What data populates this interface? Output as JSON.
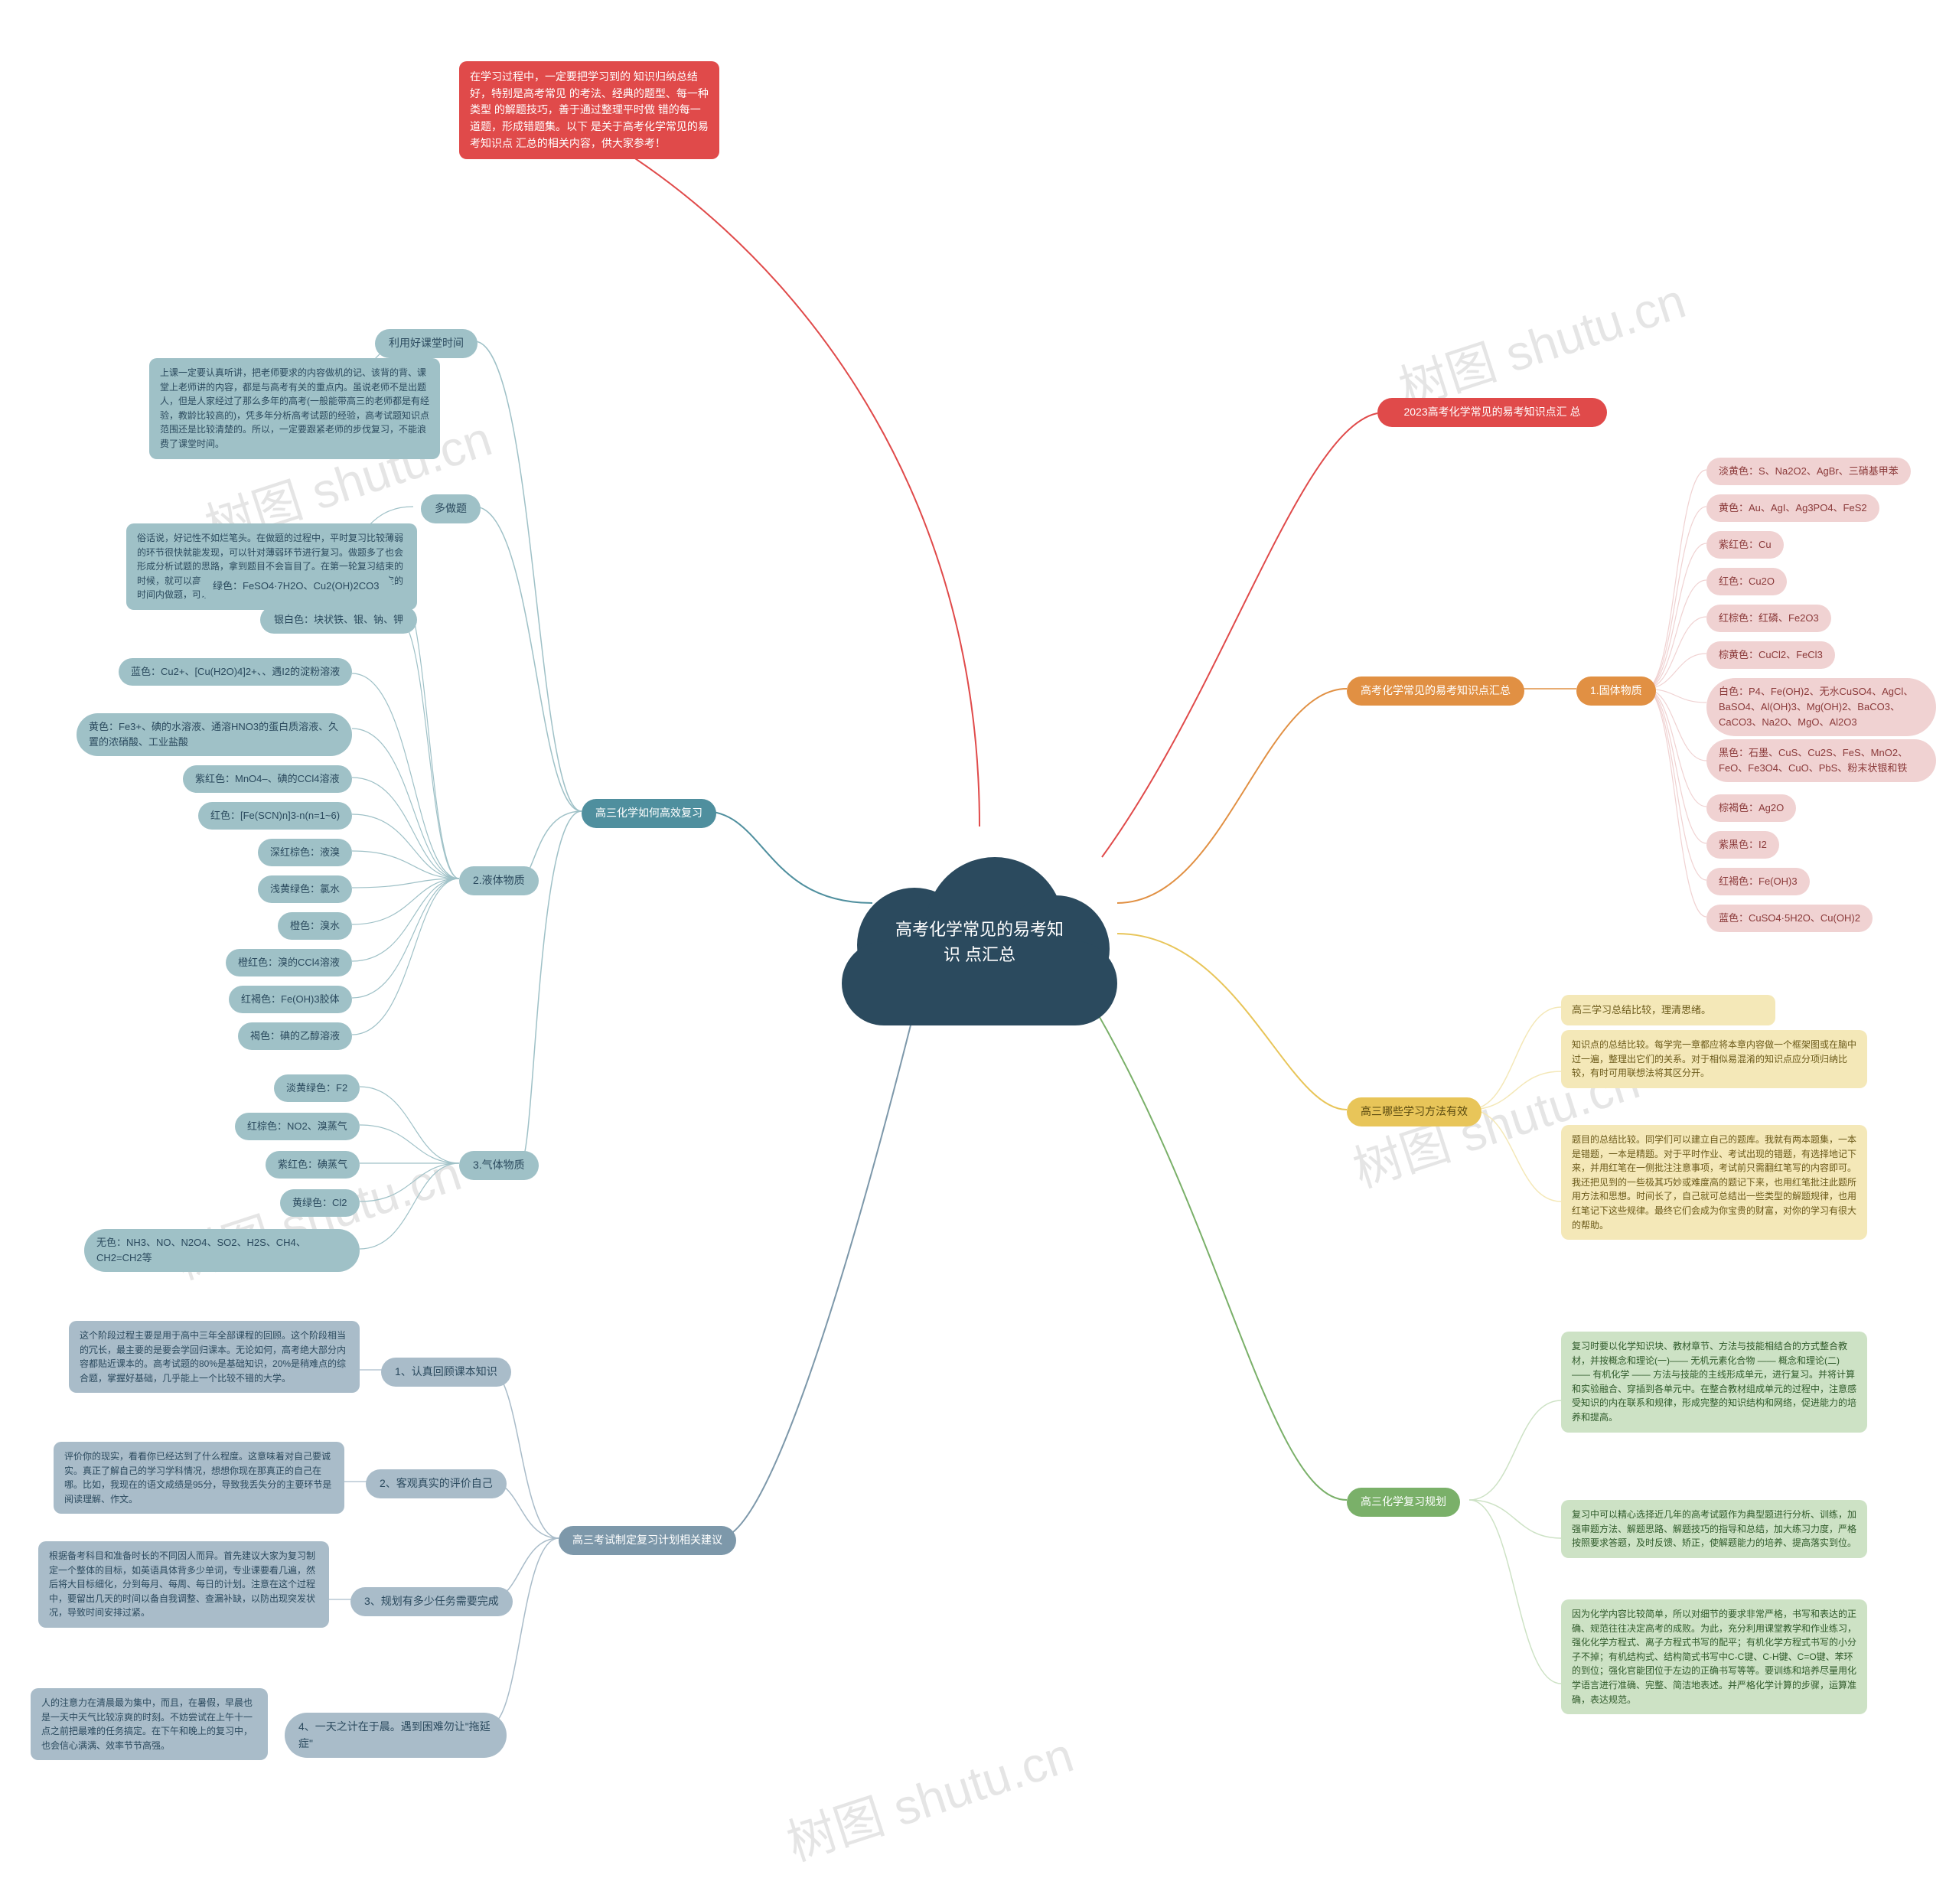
{
  "center": {
    "title": "高考化学常见的易考知识\n点汇总"
  },
  "watermark": "树图 shutu.cn",
  "colors": {
    "center": "#2b4a5e",
    "red": "#e04a4a",
    "orange": "#e19043",
    "yellow": "#e8c559",
    "green": "#7ab069",
    "tealDark": "#4f8f9e",
    "tealLight": "#9fc1c7",
    "blueGrey": "#7d98aa",
    "blueGreyLight": "#a9bcc9",
    "leafPink": "#f0d2d2",
    "leafPinkText": "#8b3a3a",
    "leafYellow": "#f4e8b8",
    "leafYellowText": "#6b5a1a",
    "leafGreen": "#cde2c5",
    "leafGreenText": "#2f5a2a",
    "white": "#ffffff"
  },
  "intro": {
    "text": "在学习过程中，一定要把学习到的\n知识归纳总结好，特别是高考常见\n的考法、经典的题型、每一种类型\n的解题技巧，善于通过整理平时做\n错的每一道题，形成错题集。以下\n是关于高考化学常见的易考知识点\n汇总的相关内容，供大家参考！"
  },
  "right": {
    "top": {
      "label": "2023高考化学常见的易考知识点汇\n总"
    },
    "mid": {
      "label": "高考化学常见的易考知识点汇总",
      "sub": "1.固体物质",
      "leaves": [
        "淡黄色：S、Na2O2、AgBr、三硝基甲苯",
        "黄色：Au、AgI、Ag3PO4、FeS2",
        "紫红色：Cu",
        "红色：Cu2O",
        "红棕色：红磷、Fe2O3",
        "棕黄色：CuCl2、FeCl3",
        "白色：P4、Fe(OH)2、无水CuSO4、AgCl、\nBaSO4、Al(OH)3、Mg(OH)2、BaCO3、\nCaCO3、Na2O、MgO、Al2O3",
        "黑色：石墨、CuS、Cu2S、FeS、MnO2、\nFeO、Fe3O4、CuO、PbS、粉末状银和铁",
        "棕褐色：Ag2O",
        "紫黑色：I2",
        "红褐色：Fe(OH)3",
        "蓝色：CuSO4·5H2O、Cu(OH)2"
      ]
    },
    "methods": {
      "label": "高三哪些学习方法有效",
      "leaves": [
        {
          "title": "高三学习总结比较，理清思绪。",
          "body": ""
        },
        {
          "title": "",
          "body": "知识点的总结比较。每学完一章都应将本章内容做一个框架图或在脑中过一遍，整理出它们的关系。对于相似易混淆的知识点应分项归纳比较，有时可用联想法将其区分开。"
        },
        {
          "title": "",
          "body": "题目的总结比较。同学们可以建立自己的题库。我就有两本题集，一本是错题，一本是精题。对于平时作业、考试出现的错题，有选择地记下来，并用红笔在一侧批注注意事项，考试前只需翻红笔写的内容即可。我还把见到的一些极其巧妙或难度高的题记下来，也用红笔批注此题所用方法和思想。时间长了，自己就可总结出一些类型的解题规律，也用红笔记下这些规律。最终它们会成为你宝贵的财富，对你的学习有很大的帮助。"
        }
      ]
    },
    "plan": {
      "label": "高三化学复习规划",
      "leaves": [
        "复习时要以化学知识块、教材章节、方法与技能相结合的方式整合教材，并按概念和理论(一)—— 无机元素化合物 ——  概念和理论(二)—— 有机化学 —— 方法与技能的主线形成单元，进行复习。并将计算和实验融合、穿插到各单元中。在整合教材组成单元的过程中，注意感受知识的内在联系和规律，形成完整的知识结构和网络，促进能力的培养和提高。",
        "复习中可以精心选择近几年的高考试题作为典型题进行分析、训练，加强审题方法、解题思路、解题技巧的指导和总结，加大练习力度，严格按照要求答题，及时反馈、矫正，使解题能力的培养、提高落实到位。",
        "因为化学内容比较简单，所以对细节的要求非常严格，书写和表达的正确、规范往往决定高考的成败。为此，充分利用课堂教学和作业练习，强化化学方程式、离子方程式书写的配平；有机化学方程式书写的小分子不掉；有机结构式、结构简式书写中C-C键、C-H键、C=O键、苯环的到位；强化官能团位于左边的正确书写等等。要训练和培养尽量用化学语言进行准确、完整、简洁地表述。并严格化学计算的步骤，运算准确，表达规范。"
      ]
    }
  },
  "leftTop": {
    "label": "高三化学如何高效复习",
    "items": [
      {
        "title": "利用好课堂时间",
        "body": "上课一定要认真听讲，把老师要求的内容做机的记、该背的背、课堂上老师讲的内容，都是与高考有关的重点内。虽说老师不是出题人，但是人家经过了那么多年的高考(一般能带高三的老师都是有经验，教龄比较高的)，凭多年分析高考试题的经验，高考试题知识点范围还是比较清楚的。所以，一定要跟紧老师的步伐复习，不能浪费了课堂时间。"
      },
      {
        "title": "多做题",
        "body": "俗话说，好记性不如烂笔头。在做题的过程中，平时复习比较薄弱的环节很快就能发现，可以针对薄弱环节进行复习。做题多了也会形成分析试题的思路，拿到题目不会盲目了。在第一轮复习结束的时候，就可以高考真题、平时做题的时候给自己定时间，在规定的时间内做题，可以锻炼做题速度。"
      }
    ],
    "liquids": {
      "label": "2.液体物质",
      "greens": [
        "绿色：FeSO4·7H2O、Cu2(OH)2CO3",
        "银白色：块状铁、银、钠、钾"
      ],
      "leaves": [
        "蓝色：Cu2+、[Cu(H2O)4]2+、、遇I2的淀粉溶液",
        "黄色：Fe3+、碘的水溶液、通溶HNO3的蛋白质溶液、久置的浓硝酸、工业盐酸",
        "紫红色：MnO4–、碘的CCl4溶液",
        "红色：[Fe(SCN)n]3-n(n=1~6)",
        "深红棕色：液溴",
        "浅黄绿色：氯水",
        "橙色：溴水",
        "橙红色：溴的CCl4溶液",
        "红褐色：Fe(OH)3胶体",
        "褐色：碘的乙醇溶液"
      ]
    },
    "gases": {
      "label": "3.气体物质",
      "leaves": [
        "淡黄绿色：F2",
        "红棕色：NO2、溴蒸气",
        "紫红色：碘蒸气",
        "黄绿色：Cl2",
        "无色：NH3、NO、N2O4、SO2、H2S、CH4、CH2=CH2等"
      ]
    }
  },
  "leftBottom": {
    "label": "高三考试制定复习计划相关建议",
    "items": [
      {
        "num": "1、认真回顾课本知识",
        "body": "这个阶段过程主要是用于高中三年全部课程的回顾。这个阶段相当的冗长，最主要的是要会学回归课本。无论如何，高考绝大部分内容都贴近课本的。高考试题的80%是基础知识，20%是稍难点的综合题，掌握好基础，几乎能上一个比较不错的大学。"
      },
      {
        "num": "2、客观真实的评价自己",
        "body": "评价你的现实，看看你已经达到了什么程度。这意味着对自己要诚实。真正了解自己的学习学科情况，想想你现在那真正的自己在哪。比如，我现在的语文成绩是95分，导致我丢失分的主要环节是阅读理解、作文。"
      },
      {
        "num": "3、规划有多少任务需要完成",
        "body": "根据备考科目和准备时长的不同因人而异。首先建议大家为复习制定一个整体的目标，如英语具体背多少单词，专业课要看几遍，然后将大目标细化，分到每月、每周、每日的计划。注意在这个过程中，要留出几天的时间以备自我调整、查漏补缺，以防出现突发状况，导致时间安排过紧。"
      },
      {
        "num": "4、一天之计在于晨。遇到困难勿让\"拖延症\"",
        "body": "人的注意力在清晨最为集中，而且，在暑假，早晨也是一天中天气比较凉爽的时刻。不妨尝试在上午十一点之前把最难的任务搞定。在下午和晚上的复习中，也会信心满满、效率节节高强。"
      }
    ]
  }
}
